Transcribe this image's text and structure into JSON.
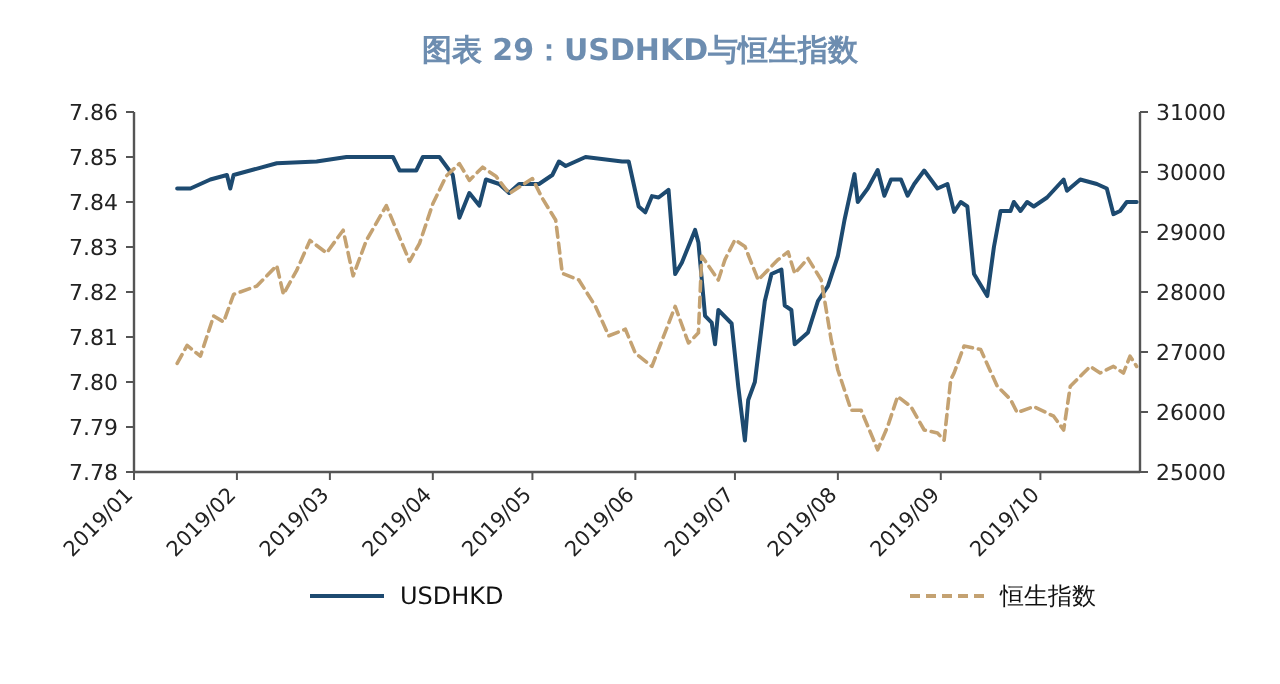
{
  "chart_data": {
    "type": "line",
    "title": "图表 29：USDHKD与恒生指数",
    "legend": "bottom",
    "xlim": [
      "2019-01-01",
      "2019-10-31"
    ],
    "xticks": [
      {
        "value": "2019-01-01",
        "label": "2019/01"
      },
      {
        "value": "2019-02-01",
        "label": "2019/02"
      },
      {
        "value": "2019-03-01",
        "label": "2019/03"
      },
      {
        "value": "2019-04-01",
        "label": "2019/04"
      },
      {
        "value": "2019-05-01",
        "label": "2019/05"
      },
      {
        "value": "2019-06-01",
        "label": "2019/06"
      },
      {
        "value": "2019-07-01",
        "label": "2019/07"
      },
      {
        "value": "2019-08-01",
        "label": "2019/08"
      },
      {
        "value": "2019-09-01",
        "label": "2019/09"
      },
      {
        "value": "2019-10-01",
        "label": "2019/10"
      }
    ],
    "ylim": [
      7.78,
      7.86
    ],
    "yticks": [
      {
        "value": 7.78,
        "label": "7.78"
      },
      {
        "value": 7.79,
        "label": "7.79"
      },
      {
        "value": 7.8,
        "label": "7.80"
      },
      {
        "value": 7.81,
        "label": "7.81"
      },
      {
        "value": 7.82,
        "label": "7.82"
      },
      {
        "value": 7.83,
        "label": "7.83"
      },
      {
        "value": 7.84,
        "label": "7.84"
      },
      {
        "value": 7.85,
        "label": "7.85"
      },
      {
        "value": 7.86,
        "label": "7.86"
      }
    ],
    "y2lim": [
      25000,
      31000
    ],
    "y2ticks": [
      25000,
      26000,
      27000,
      28000,
      29000,
      30000,
      31000
    ],
    "series": [
      {
        "name": "USDHKD",
        "color": "#1d4a70",
        "line_style": "solid",
        "x": [
          "2019-01-14",
          "2019-01-18",
          "2019-01-24",
          "2019-01-29",
          "2019-01-30",
          "2019-01-31",
          "2019-02-13",
          "2019-02-25",
          "2019-03-06",
          "2019-03-20",
          "2019-03-22",
          "2019-03-27",
          "2019-03-29",
          "2019-04-03",
          "2019-04-05",
          "2019-04-07",
          "2019-04-09",
          "2019-04-12",
          "2019-04-15",
          "2019-04-17",
          "2019-04-21",
          "2019-04-24",
          "2019-04-27",
          "2019-05-03",
          "2019-05-07",
          "2019-05-09",
          "2019-05-11",
          "2019-05-17",
          "2019-05-28",
          "2019-05-30",
          "2019-06-02",
          "2019-06-04",
          "2019-06-06",
          "2019-06-08",
          "2019-06-11",
          "2019-06-13",
          "2019-06-15",
          "2019-06-19",
          "2019-06-20",
          "2019-06-22",
          "2019-06-24",
          "2019-06-25",
          "2019-06-26",
          "2019-06-30",
          "2019-07-02",
          "2019-07-04",
          "2019-07-05",
          "2019-07-07",
          "2019-07-10",
          "2019-07-12",
          "2019-07-15",
          "2019-07-16",
          "2019-07-18",
          "2019-07-19",
          "2019-07-23",
          "2019-07-26",
          "2019-07-29",
          "2019-08-01",
          "2019-08-03",
          "2019-08-06",
          "2019-08-07",
          "2019-08-10",
          "2019-08-13",
          "2019-08-15",
          "2019-08-17",
          "2019-08-20",
          "2019-08-22",
          "2019-08-24",
          "2019-08-27",
          "2019-08-29",
          "2019-08-31",
          "2019-09-03",
          "2019-09-05",
          "2019-09-07",
          "2019-09-09",
          "2019-09-11",
          "2019-09-15",
          "2019-09-17",
          "2019-09-19",
          "2019-09-22",
          "2019-09-23",
          "2019-09-25",
          "2019-09-27",
          "2019-09-29",
          "2019-10-03",
          "2019-10-08",
          "2019-10-09",
          "2019-10-13",
          "2019-10-18",
          "2019-10-21",
          "2019-10-23",
          "2019-10-25",
          "2019-10-27",
          "2019-10-30"
        ],
        "values": [
          7.843,
          7.843,
          7.845,
          7.846,
          7.843,
          7.846,
          7.8486,
          7.849,
          7.85,
          7.85,
          7.847,
          7.847,
          7.85,
          7.85,
          7.848,
          7.846,
          7.8365,
          7.842,
          7.8392,
          7.845,
          7.844,
          7.842,
          7.844,
          7.844,
          7.846,
          7.849,
          7.848,
          7.85,
          7.849,
          7.849,
          7.839,
          7.8377,
          7.8413,
          7.841,
          7.8427,
          7.824,
          7.8265,
          7.8338,
          7.831,
          7.8147,
          7.8132,
          7.8084,
          7.816,
          7.813,
          7.799,
          7.787,
          7.796,
          7.8,
          7.818,
          7.824,
          7.825,
          7.817,
          7.816,
          7.8084,
          7.811,
          7.818,
          7.8213,
          7.828,
          7.836,
          7.8462,
          7.84,
          7.843,
          7.8471,
          7.8414,
          7.845,
          7.845,
          7.8414,
          7.844,
          7.847,
          7.845,
          7.843,
          7.844,
          7.8378,
          7.84,
          7.839,
          7.824,
          7.8191,
          7.83,
          7.838,
          7.838,
          7.84,
          7.838,
          7.84,
          7.839,
          7.841,
          7.845,
          7.8425,
          7.845,
          7.844,
          7.843,
          7.8373,
          7.838,
          7.84,
          7.84
        ]
      },
      {
        "name": "恒生指数",
        "color": "#c4a272",
        "line_style": "dashed",
        "axis": "y2",
        "x": [
          "2019-01-14",
          "2019-01-17",
          "2019-01-21",
          "2019-01-25",
          "2019-01-28",
          "2019-01-31",
          "2019-02-07",
          "2019-02-13",
          "2019-02-15",
          "2019-02-19",
          "2019-02-23",
          "2019-02-28",
          "2019-03-05",
          "2019-03-08",
          "2019-03-12",
          "2019-03-18",
          "2019-03-25",
          "2019-03-28",
          "2019-04-01",
          "2019-04-05",
          "2019-04-09",
          "2019-04-12",
          "2019-04-16",
          "2019-04-20",
          "2019-04-24",
          "2019-05-01",
          "2019-05-04",
          "2019-05-08",
          "2019-05-10",
          "2019-05-15",
          "2019-05-20",
          "2019-05-24",
          "2019-05-29",
          "2019-06-01",
          "2019-06-06",
          "2019-06-13",
          "2019-06-17",
          "2019-06-20",
          "2019-06-21",
          "2019-06-26",
          "2019-06-28",
          "2019-07-01",
          "2019-07-04",
          "2019-07-08",
          "2019-07-14",
          "2019-07-17",
          "2019-07-19",
          "2019-07-23",
          "2019-07-27",
          "2019-07-30",
          "2019-08-01",
          "2019-08-05",
          "2019-08-08",
          "2019-08-13",
          "2019-08-16",
          "2019-08-19",
          "2019-08-23",
          "2019-08-27",
          "2019-08-31",
          "2019-09-02",
          "2019-09-04",
          "2019-09-05",
          "2019-09-08",
          "2019-09-13",
          "2019-09-18",
          "2019-09-22",
          "2019-09-24",
          "2019-09-29",
          "2019-10-05",
          "2019-10-08",
          "2019-10-10",
          "2019-10-14",
          "2019-10-16",
          "2019-10-19",
          "2019-10-23",
          "2019-10-26",
          "2019-10-28",
          "2019-10-30"
        ],
        "values": [
          26810,
          27110,
          26930,
          27600,
          27500,
          27960,
          28100,
          28440,
          27960,
          28360,
          28860,
          28650,
          29030,
          28270,
          28860,
          29440,
          28510,
          28810,
          29470,
          29930,
          30140,
          29860,
          30080,
          29930,
          29640,
          29890,
          29560,
          29200,
          28310,
          28200,
          27760,
          27270,
          27380,
          26980,
          26760,
          27760,
          27150,
          27320,
          28600,
          28200,
          28540,
          28870,
          28760,
          28200,
          28540,
          28670,
          28310,
          28560,
          28200,
          27200,
          26700,
          26030,
          26030,
          25370,
          25760,
          26260,
          26090,
          25700,
          25650,
          25530,
          26540,
          26650,
          27100,
          27040,
          26430,
          26210,
          25990,
          26090,
          25930,
          25700,
          26430,
          26650,
          26760,
          26650,
          26760,
          26650,
          26930,
          26760
        ]
      }
    ]
  }
}
